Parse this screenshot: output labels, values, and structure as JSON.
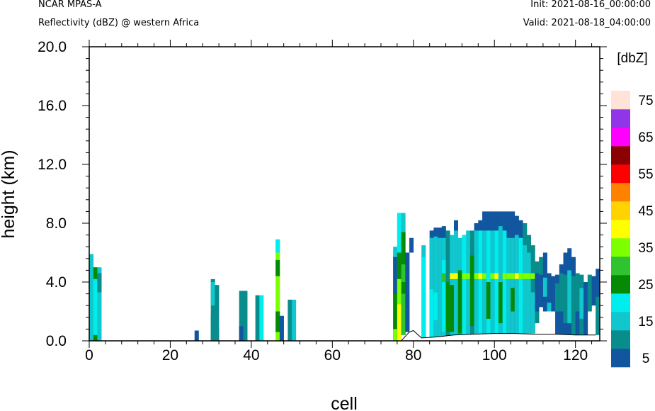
{
  "header": {
    "model": "NCAR MPAS-A",
    "field": "Reflectivity (dBZ) @ western Africa",
    "init": "Init: 2021-08-16_00:00:00",
    "valid": "Valid: 2021-08-18_04:00:00"
  },
  "chart_data": {
    "type": "heatmap",
    "xlabel": "cell",
    "ylabel": "height (km)",
    "xlim": [
      0,
      126
    ],
    "ylim": [
      0,
      20
    ],
    "x_ticks": [
      "0",
      "20",
      "40",
      "60",
      "80",
      "100",
      "120"
    ],
    "y_ticks": [
      "0.0",
      "4.0",
      "8.0",
      "12.0",
      "16.0",
      "20.0"
    ],
    "colorbar": {
      "unit": "[dbZ]",
      "levels": [
        5,
        10,
        15,
        20,
        25,
        30,
        35,
        40,
        45,
        50,
        55,
        60,
        65,
        70,
        75
      ],
      "labels": [
        "5",
        "15",
        "25",
        "35",
        "45",
        "55",
        "65",
        "75"
      ],
      "colors": [
        "#11569e",
        "#088c8c",
        "#11c6cc",
        "#00eded",
        "#058a05",
        "#2fc42f",
        "#7dff00",
        "#ffff00",
        "#ffd200",
        "#ff8100",
        "#ff0000",
        "#8b0000",
        "#ff00ff",
        "#9035e8",
        "#ffe3d9"
      ]
    },
    "terrain": [
      [
        75,
        0.0
      ],
      [
        77,
        0.0
      ],
      [
        79,
        0.6
      ],
      [
        80,
        0.7
      ],
      [
        82,
        0.2
      ],
      [
        85,
        0.25
      ],
      [
        87,
        0.3
      ],
      [
        90,
        0.4
      ],
      [
        95,
        0.45
      ],
      [
        100,
        0.5
      ],
      [
        105,
        0.5
      ],
      [
        110,
        0.45
      ],
      [
        115,
        0.45
      ],
      [
        120,
        0.4
      ],
      [
        125,
        0.4
      ]
    ],
    "columns": [
      {
        "x": 0,
        "segs": [
          [
            0,
            5.9,
            15
          ]
        ]
      },
      {
        "x": 1,
        "segs": [
          [
            0,
            5.0,
            20
          ],
          [
            0,
            0.4,
            25
          ],
          [
            4.2,
            5.0,
            25
          ]
        ]
      },
      {
        "x": 2,
        "segs": [
          [
            0,
            5.0,
            15
          ],
          [
            3.3,
            4.6,
            10
          ]
        ]
      },
      {
        "x": 26,
        "segs": [
          [
            0,
            0.7,
            5
          ]
        ]
      },
      {
        "x": 30,
        "segs": [
          [
            0,
            4.2,
            10
          ],
          [
            0,
            1.8,
            10
          ],
          [
            2.4,
            4.0,
            15
          ]
        ]
      },
      {
        "x": 31,
        "segs": [
          [
            0,
            3.8,
            10
          ],
          [
            0,
            1.0,
            10
          ]
        ]
      },
      {
        "x": 37,
        "segs": [
          [
            0,
            3.4,
            10
          ],
          [
            0,
            1.0,
            5
          ]
        ]
      },
      {
        "x": 38,
        "segs": [
          [
            0,
            3.4,
            10
          ]
        ]
      },
      {
        "x": 41,
        "segs": [
          [
            0,
            3.1,
            10
          ]
        ]
      },
      {
        "x": 42,
        "segs": [
          [
            0,
            3.1,
            20
          ]
        ]
      },
      {
        "x": 46,
        "segs": [
          [
            0,
            6.9,
            35
          ],
          [
            0.6,
            2.0,
            25
          ],
          [
            4.4,
            5.5,
            25
          ],
          [
            6.0,
            6.9,
            20
          ]
        ]
      },
      {
        "x": 47,
        "segs": [
          [
            0,
            1.7,
            5
          ]
        ]
      },
      {
        "x": 49,
        "segs": [
          [
            0,
            2.8,
            10
          ]
        ]
      },
      {
        "x": 50,
        "segs": [
          [
            0,
            2.8,
            15
          ]
        ]
      },
      {
        "x": 75,
        "segs": [
          [
            0,
            6.4,
            15
          ],
          [
            0,
            3.3,
            25
          ],
          [
            0,
            0.8,
            35
          ],
          [
            3.2,
            5.7,
            5
          ]
        ]
      },
      {
        "x": 76,
        "segs": [
          [
            0,
            8.7,
            20
          ],
          [
            0,
            6.0,
            25
          ],
          [
            0,
            2.5,
            40
          ],
          [
            2.5,
            4.2,
            35
          ],
          [
            6.0,
            8.6,
            20
          ]
        ]
      },
      {
        "x": 77,
        "segs": [
          [
            0.4,
            8.7,
            15
          ],
          [
            0.4,
            7.4,
            25
          ],
          [
            0.4,
            3.2,
            30
          ],
          [
            4.0,
            5.2,
            30
          ]
        ]
      },
      {
        "x": 78,
        "segs": [
          [
            0.6,
            3.3,
            30
          ],
          [
            0.6,
            6.0,
            5
          ]
        ]
      },
      {
        "x": 79,
        "segs": [
          [
            6.0,
            7.0,
            5
          ]
        ]
      },
      {
        "x": 82,
        "segs": [
          [
            0.2,
            6.5,
            15
          ],
          [
            0.2,
            5.7,
            20
          ]
        ]
      },
      {
        "x": 84,
        "segs": [
          [
            0.2,
            7.5,
            5
          ],
          [
            0.2,
            7.0,
            15
          ],
          [
            0.2,
            3.5,
            20
          ]
        ]
      },
      {
        "x": 85,
        "segs": [
          [
            0.25,
            7.7,
            5
          ],
          [
            0.25,
            7.1,
            15
          ],
          [
            1.4,
            3.3,
            20
          ]
        ]
      },
      {
        "x": 86,
        "segs": [
          [
            0.25,
            7.7,
            5
          ],
          [
            0.25,
            7.0,
            15
          ]
        ]
      },
      {
        "x": 87,
        "segs": [
          [
            0.3,
            7.8,
            5
          ],
          [
            0.3,
            7.0,
            15
          ],
          [
            0.6,
            5.5,
            20
          ],
          [
            4.0,
            4.6,
            30
          ]
        ]
      },
      {
        "x": 88,
        "segs": [
          [
            0.3,
            7.5,
            10
          ],
          [
            0.6,
            4.0,
            25
          ]
        ]
      },
      {
        "x": 89,
        "segs": [
          [
            0.35,
            7.2,
            15
          ],
          [
            0.6,
            3.8,
            25
          ],
          [
            4.2,
            4.6,
            40
          ]
        ]
      },
      {
        "x": 90,
        "segs": [
          [
            0.4,
            8.2,
            5
          ],
          [
            0.4,
            7.5,
            15
          ],
          [
            4.2,
            4.6,
            40
          ]
        ]
      },
      {
        "x": 91,
        "segs": [
          [
            0.4,
            7.0,
            15
          ],
          [
            0.5,
            4.8,
            25
          ]
        ]
      },
      {
        "x": 92,
        "segs": [
          [
            0.4,
            7.2,
            20
          ],
          [
            4.2,
            4.6,
            35
          ]
        ]
      },
      {
        "x": 93,
        "segs": [
          [
            0.4,
            7.5,
            15
          ],
          [
            4.2,
            4.6,
            35
          ]
        ]
      },
      {
        "x": 94,
        "segs": [
          [
            0.4,
            7.5,
            10
          ],
          [
            1.0,
            5.8,
            25
          ]
        ]
      },
      {
        "x": 95,
        "segs": [
          [
            0.4,
            8.0,
            5
          ],
          [
            0.4,
            7.5,
            15
          ],
          [
            4.2,
            4.6,
            35
          ]
        ]
      },
      {
        "x": 96,
        "segs": [
          [
            0.45,
            8.2,
            5
          ],
          [
            0.45,
            7.5,
            20
          ],
          [
            4.2,
            4.6,
            40
          ]
        ]
      },
      {
        "x": 97,
        "segs": [
          [
            0.45,
            8.8,
            5
          ],
          [
            0.45,
            7.5,
            15
          ],
          [
            4.2,
            4.6,
            35
          ]
        ]
      },
      {
        "x": 98,
        "segs": [
          [
            0.45,
            8.8,
            5
          ],
          [
            0.45,
            7.5,
            20
          ],
          [
            1.5,
            4.0,
            25
          ]
        ]
      },
      {
        "x": 99,
        "segs": [
          [
            0.5,
            8.8,
            5
          ],
          [
            0.5,
            7.5,
            15
          ],
          [
            4.2,
            4.6,
            35
          ]
        ]
      },
      {
        "x": 100,
        "segs": [
          [
            0.5,
            8.8,
            5
          ],
          [
            0.5,
            7.5,
            20
          ],
          [
            4.2,
            4.6,
            40
          ]
        ]
      },
      {
        "x": 101,
        "segs": [
          [
            0.5,
            8.8,
            5
          ],
          [
            0.5,
            7.8,
            15
          ],
          [
            1.2,
            4.0,
            25
          ]
        ]
      },
      {
        "x": 102,
        "segs": [
          [
            0.5,
            8.8,
            5
          ],
          [
            0.5,
            7.5,
            20
          ],
          [
            4.2,
            4.6,
            35
          ]
        ]
      },
      {
        "x": 103,
        "segs": [
          [
            0.5,
            8.8,
            5
          ],
          [
            0.5,
            7.0,
            15
          ],
          [
            4.2,
            4.6,
            35
          ]
        ]
      },
      {
        "x": 104,
        "segs": [
          [
            0.5,
            8.8,
            5
          ],
          [
            0.5,
            7.0,
            15
          ],
          [
            2.0,
            3.6,
            25
          ],
          [
            4.2,
            4.6,
            35
          ]
        ]
      },
      {
        "x": 105,
        "segs": [
          [
            0.5,
            8.5,
            5
          ],
          [
            0.5,
            7.2,
            15
          ],
          [
            4.2,
            4.6,
            40
          ]
        ]
      },
      {
        "x": 106,
        "segs": [
          [
            0.5,
            8.2,
            5
          ],
          [
            0.5,
            7.0,
            20
          ],
          [
            4.2,
            4.6,
            35
          ]
        ]
      },
      {
        "x": 107,
        "segs": [
          [
            0.5,
            8.0,
            10
          ],
          [
            0.5,
            6.5,
            15
          ],
          [
            4.2,
            4.6,
            35
          ]
        ]
      },
      {
        "x": 108,
        "segs": [
          [
            0.5,
            7.2,
            10
          ],
          [
            0.5,
            6.0,
            15
          ],
          [
            4.2,
            4.6,
            35
          ]
        ]
      },
      {
        "x": 109,
        "segs": [
          [
            0.5,
            6.5,
            10
          ],
          [
            0.5,
            3.3,
            15
          ],
          [
            4.2,
            4.6,
            35
          ]
        ]
      },
      {
        "x": 110,
        "segs": [
          [
            1.2,
            5.4,
            10
          ],
          [
            2.0,
            4.6,
            5
          ]
        ]
      },
      {
        "x": 111,
        "segs": [
          [
            2.3,
            5.7,
            10
          ],
          [
            2.3,
            4.5,
            5
          ]
        ]
      },
      {
        "x": 112,
        "segs": [
          [
            2.0,
            6.0,
            5
          ],
          [
            3.0,
            4.3,
            15
          ]
        ]
      },
      {
        "x": 113,
        "segs": [
          [
            2.3,
            4.6,
            5
          ],
          [
            2.0,
            2.6,
            15
          ]
        ]
      },
      {
        "x": 114,
        "segs": [
          [
            2.0,
            4.4,
            5
          ]
        ]
      },
      {
        "x": 115,
        "segs": [
          [
            0.4,
            4.5,
            5
          ],
          [
            2.0,
            3.9,
            10
          ]
        ]
      },
      {
        "x": 116,
        "segs": [
          [
            0.4,
            5.2,
            5
          ],
          [
            2.0,
            4.6,
            10
          ]
        ]
      },
      {
        "x": 117,
        "segs": [
          [
            0.4,
            6.0,
            5
          ],
          [
            1.2,
            4.5,
            10
          ]
        ]
      },
      {
        "x": 118,
        "segs": [
          [
            0.4,
            6.3,
            5
          ],
          [
            1.2,
            4.8,
            15
          ]
        ]
      },
      {
        "x": 119,
        "segs": [
          [
            0.4,
            5.7,
            5
          ],
          [
            0.4,
            4.4,
            10
          ]
        ]
      },
      {
        "x": 120,
        "segs": [
          [
            0.4,
            4.6,
            10
          ],
          [
            0.4,
            2.0,
            5
          ]
        ]
      },
      {
        "x": 121,
        "segs": [
          [
            0.4,
            4.5,
            10
          ],
          [
            1.5,
            3.6,
            15
          ]
        ]
      },
      {
        "x": 122,
        "segs": [
          [
            0.4,
            4.0,
            5
          ]
        ]
      },
      {
        "x": 123,
        "segs": [
          [
            2.0,
            4.5,
            10
          ]
        ]
      },
      {
        "x": 124,
        "segs": [
          [
            2.4,
            4.4,
            5
          ]
        ]
      },
      {
        "x": 125,
        "segs": [
          [
            0.4,
            4.9,
            5
          ],
          [
            0.4,
            3.0,
            10
          ]
        ]
      }
    ]
  }
}
